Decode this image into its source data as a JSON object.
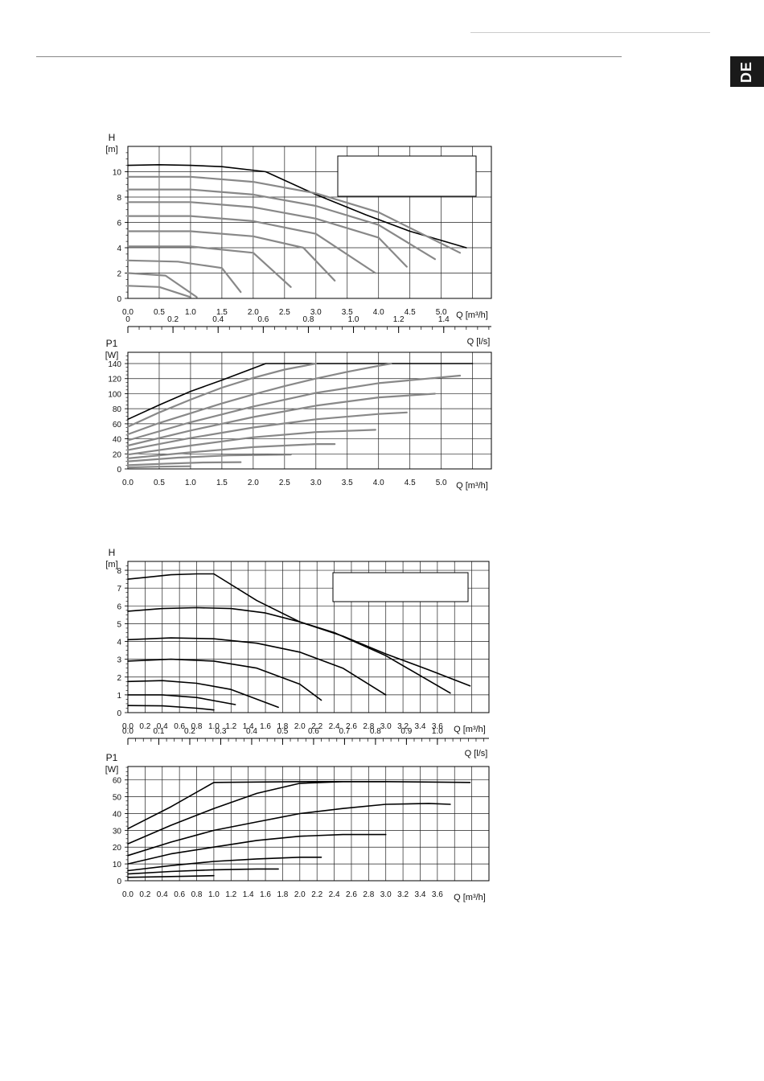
{
  "header": {
    "language_tab": "DE"
  },
  "chart_data": [
    {
      "id": "pump1_head",
      "type": "line",
      "title": "",
      "ylabel": "H",
      "yunit": "[m]",
      "xlabel": "Q [m³/h]",
      "xlim": [
        0,
        5.8
      ],
      "ylim": [
        0,
        12
      ],
      "xticks": [
        0,
        0.5,
        1,
        1.5,
        2,
        2.5,
        3,
        3.5,
        4,
        4.5,
        5
      ],
      "xticklabels": [
        "0.0",
        "0.5",
        "1.0",
        "1.5",
        "2.0",
        "2.5",
        "3.0",
        "3.5",
        "4.0",
        "4.5",
        "5.0"
      ],
      "yticks": [
        0,
        2,
        4,
        6,
        8,
        10
      ],
      "yticklabels": [
        "0",
        "2",
        "4",
        "6",
        "8",
        "10"
      ],
      "legend_box": true,
      "secondary_axis": {
        "label": "Q [l/s]",
        "ticks": [
          0,
          0.2,
          0.4,
          0.6,
          0.8,
          1.0,
          1.2,
          1.4
        ],
        "ticklabels": [
          "0",
          "0.2",
          "0.4",
          "0.6",
          "0.8",
          "1.0",
          "1.2",
          "1.4"
        ]
      },
      "series": [
        {
          "color": "#000000",
          "x": [
            0,
            0.5,
            1.0,
            1.5,
            2.2,
            3.0,
            3.8,
            4.5,
            5.4
          ],
          "y": [
            10.5,
            10.55,
            10.5,
            10.4,
            10.0,
            8.2,
            6.6,
            5.3,
            4.0
          ]
        },
        {
          "color": "#888888",
          "x": [
            0,
            1.0,
            2.0,
            3.0,
            4.0,
            5.3
          ],
          "y": [
            9.6,
            9.6,
            9.2,
            8.3,
            6.8,
            3.6
          ]
        },
        {
          "color": "#888888",
          "x": [
            0,
            1.0,
            2.0,
            3.0,
            4.0,
            4.9
          ],
          "y": [
            8.6,
            8.6,
            8.2,
            7.3,
            5.8,
            3.1
          ]
        },
        {
          "color": "#888888",
          "x": [
            0,
            1.0,
            2.0,
            3.0,
            4.0,
            4.45
          ],
          "y": [
            7.6,
            7.6,
            7.2,
            6.3,
            4.8,
            2.5
          ]
        },
        {
          "color": "#888888",
          "x": [
            0,
            1.0,
            2.0,
            3.0,
            3.95
          ],
          "y": [
            6.5,
            6.5,
            6.1,
            5.1,
            2.0
          ]
        },
        {
          "color": "#888888",
          "x": [
            0,
            1.0,
            2.0,
            2.8,
            3.3
          ],
          "y": [
            5.3,
            5.3,
            4.9,
            4.0,
            1.4
          ]
        },
        {
          "color": "#888888",
          "x": [
            0,
            1.0,
            2.0,
            2.6
          ],
          "y": [
            4.1,
            4.1,
            3.6,
            0.9
          ]
        },
        {
          "color": "#888888",
          "x": [
            0,
            0.8,
            1.5,
            1.8
          ],
          "y": [
            3.0,
            2.9,
            2.4,
            0.5
          ]
        },
        {
          "color": "#888888",
          "x": [
            0,
            0.6,
            1.1
          ],
          "y": [
            2.0,
            1.8,
            0.1
          ]
        },
        {
          "color": "#888888",
          "x": [
            0,
            0.5,
            1.0
          ],
          "y": [
            1.0,
            0.9,
            0.1
          ]
        }
      ]
    },
    {
      "id": "pump1_power",
      "type": "line",
      "title": "",
      "ylabel": "P1",
      "yunit": "[W]",
      "xlabel": "Q [m³/h]",
      "xlim": [
        0,
        5.8
      ],
      "ylim": [
        0,
        155
      ],
      "xticks": [
        0,
        0.5,
        1,
        1.5,
        2,
        2.5,
        3,
        3.5,
        4,
        4.5,
        5
      ],
      "xticklabels": [
        "0.0",
        "0.5",
        "1.0",
        "1.5",
        "2.0",
        "2.5",
        "3.0",
        "3.5",
        "4.0",
        "4.5",
        "5.0"
      ],
      "yticks": [
        0,
        20,
        40,
        60,
        80,
        100,
        120,
        140
      ],
      "yticklabels": [
        "0",
        "20",
        "40",
        "60",
        "80",
        "100",
        "120",
        "140"
      ],
      "series": [
        {
          "color": "#000000",
          "x": [
            0,
            0.5,
            1.0,
            1.5,
            2.2,
            3.0,
            4.0,
            5.5
          ],
          "y": [
            66,
            85,
            103,
            118,
            140,
            140,
            140,
            140
          ]
        },
        {
          "color": "#888888",
          "x": [
            0,
            0.5,
            1.0,
            1.5,
            2.0,
            2.5,
            3.0
          ],
          "y": [
            56,
            75,
            92,
            108,
            121,
            132,
            140
          ]
        },
        {
          "color": "#888888",
          "x": [
            0,
            0.5,
            1.0,
            1.5,
            2.0,
            2.5,
            3.0,
            3.5,
            4.0,
            4.2
          ],
          "y": [
            46,
            61,
            74,
            87,
            99,
            110,
            120,
            129,
            137,
            140
          ]
        },
        {
          "color": "#888888",
          "x": [
            0,
            1.0,
            2.0,
            3.0,
            4.0,
            5.3
          ],
          "y": [
            38,
            62,
            83,
            101,
            114,
            124
          ]
        },
        {
          "color": "#888888",
          "x": [
            0,
            1.0,
            2.0,
            3.0,
            4.0,
            4.9
          ],
          "y": [
            31,
            51,
            69,
            84,
            95,
            100
          ]
        },
        {
          "color": "#888888",
          "x": [
            0,
            1.0,
            2.0,
            3.0,
            4.0,
            4.45
          ],
          "y": [
            25,
            41,
            55,
            66,
            73,
            75
          ]
        },
        {
          "color": "#888888",
          "x": [
            0,
            1.0,
            2.0,
            3.0,
            3.95
          ],
          "y": [
            19,
            31,
            42,
            49,
            52
          ]
        },
        {
          "color": "#888888",
          "x": [
            0,
            1.0,
            2.0,
            3.0,
            3.3
          ],
          "y": [
            14,
            22,
            29,
            33,
            33
          ]
        },
        {
          "color": "#888888",
          "x": [
            0,
            0.8,
            1.6,
            2.6
          ],
          "y": [
            10,
            15,
            18,
            19
          ]
        },
        {
          "color": "#888888",
          "x": [
            0,
            0.6,
            1.2,
            1.8
          ],
          "y": [
            5,
            7,
            8.5,
            9
          ]
        },
        {
          "color": "#888888",
          "x": [
            0,
            0.5,
            1.0
          ],
          "y": [
            2,
            3,
            3.5
          ]
        }
      ]
    },
    {
      "id": "pump2_head",
      "type": "line",
      "title": "",
      "ylabel": "H",
      "yunit": "[m]",
      "xlabel": "Q [m³/h]",
      "xlim": [
        0,
        4.2
      ],
      "ylim": [
        0,
        8.5
      ],
      "xticks": [
        0,
        0.2,
        0.4,
        0.6,
        0.8,
        1.0,
        1.2,
        1.4,
        1.6,
        1.8,
        2.0,
        2.2,
        2.4,
        2.6,
        2.8,
        3.0,
        3.2,
        3.4,
        3.6
      ],
      "xticklabels": [
        "0.0",
        "0.2",
        "0.4",
        "0.6",
        "0.8",
        "1.0",
        "1.2",
        "1.4",
        "1.6",
        "1.8",
        "2.0",
        "2.2",
        "2.4",
        "2.6",
        "2.8",
        "3.0",
        "3.2",
        "3.4",
        "3.6"
      ],
      "yticks": [
        0,
        1,
        2,
        3,
        4,
        5,
        6,
        7,
        8
      ],
      "yticklabels": [
        "0",
        "1",
        "2",
        "3",
        "4",
        "5",
        "6",
        "7",
        "8"
      ],
      "legend_box": true,
      "secondary_axis": {
        "label": "Q [l/s]",
        "ticks": [
          0,
          0.1,
          0.2,
          0.3,
          0.4,
          0.5,
          0.6,
          0.7,
          0.8,
          0.9,
          1.0
        ],
        "ticklabels": [
          "0.0",
          "0.1",
          "0.2",
          "0.3",
          "0.4",
          "0.5",
          "0.6",
          "0.7",
          "0.8",
          "0.9",
          "1.0"
        ]
      },
      "series": [
        {
          "color": "#000000",
          "x": [
            0,
            0.2,
            0.5,
            0.8,
            1.0,
            1.5,
            2.0,
            2.5,
            3.0,
            3.5,
            3.98
          ],
          "y": [
            7.5,
            7.6,
            7.75,
            7.8,
            7.8,
            6.3,
            5.1,
            4.3,
            3.3,
            2.4,
            1.5
          ]
        },
        {
          "color": "#000000",
          "x": [
            0,
            0.4,
            0.8,
            1.2,
            1.6,
            2.0,
            2.4,
            3.0,
            3.75
          ],
          "y": [
            5.7,
            5.85,
            5.9,
            5.85,
            5.6,
            5.1,
            4.5,
            3.2,
            1.1
          ]
        },
        {
          "color": "#000000",
          "x": [
            0,
            0.5,
            1.0,
            1.5,
            2.0,
            2.5,
            3.0
          ],
          "y": [
            4.1,
            4.2,
            4.15,
            3.9,
            3.4,
            2.5,
            1.0
          ]
        },
        {
          "color": "#000000",
          "x": [
            0,
            0.5,
            1.0,
            1.5,
            2.0,
            2.25
          ],
          "y": [
            2.9,
            3.0,
            2.9,
            2.5,
            1.6,
            0.7
          ]
        },
        {
          "color": "#000000",
          "x": [
            0,
            0.4,
            0.8,
            1.2,
            1.75
          ],
          "y": [
            1.75,
            1.8,
            1.65,
            1.3,
            0.3
          ]
        },
        {
          "color": "#000000",
          "x": [
            0,
            0.4,
            0.8,
            1.25
          ],
          "y": [
            1.0,
            1.0,
            0.85,
            0.45
          ]
        },
        {
          "color": "#000000",
          "x": [
            0,
            0.4,
            0.8,
            1.0
          ],
          "y": [
            0.4,
            0.38,
            0.25,
            0.15
          ]
        }
      ]
    },
    {
      "id": "pump2_power",
      "type": "line",
      "title": "",
      "ylabel": "P1",
      "yunit": "[W]",
      "xlabel": "Q [m³/h]",
      "xlim": [
        0,
        4.2
      ],
      "ylim": [
        0,
        68
      ],
      "xticks": [
        0,
        0.2,
        0.4,
        0.6,
        0.8,
        1.0,
        1.2,
        1.4,
        1.6,
        1.8,
        2.0,
        2.2,
        2.4,
        2.6,
        2.8,
        3.0,
        3.2,
        3.4,
        3.6
      ],
      "xticklabels": [
        "0.0",
        "0.2",
        "0.4",
        "0.6",
        "0.8",
        "1.0",
        "1.2",
        "1.4",
        "1.6",
        "1.8",
        "2.0",
        "2.2",
        "2.4",
        "2.6",
        "2.8",
        "3.0",
        "3.2",
        "3.4",
        "3.6"
      ],
      "yticks": [
        0,
        10,
        20,
        30,
        40,
        50,
        60
      ],
      "yticklabels": [
        "0",
        "10",
        "20",
        "30",
        "40",
        "50",
        "60"
      ],
      "series": [
        {
          "color": "#000000",
          "x": [
            0,
            0.5,
            1.0,
            2.0,
            3.0,
            3.98
          ],
          "y": [
            31,
            44,
            58.5,
            59,
            59,
            58.5
          ]
        },
        {
          "color": "#000000",
          "x": [
            0,
            0.5,
            1.0,
            1.5,
            2.0,
            2.5,
            3.0
          ],
          "y": [
            22,
            33,
            43,
            52,
            58,
            59,
            59
          ]
        },
        {
          "color": "#000000",
          "x": [
            0,
            0.5,
            1.0,
            1.5,
            2.0,
            2.5,
            3.0,
            3.5,
            3.75
          ],
          "y": [
            15,
            23,
            30,
            35,
            40,
            43,
            45.5,
            46,
            45.5
          ]
        },
        {
          "color": "#000000",
          "x": [
            0,
            0.5,
            1.0,
            1.5,
            2.0,
            2.5,
            3.0
          ],
          "y": [
            10,
            16,
            20,
            24,
            26.5,
            27.5,
            27.5
          ]
        },
        {
          "color": "#000000",
          "x": [
            0,
            0.5,
            1.0,
            1.5,
            2.0,
            2.25
          ],
          "y": [
            6,
            9,
            11.5,
            13,
            14,
            14
          ]
        },
        {
          "color": "#000000",
          "x": [
            0,
            0.5,
            1.0,
            1.5,
            1.75
          ],
          "y": [
            4,
            5.5,
            6.5,
            7,
            7
          ]
        },
        {
          "color": "#000000",
          "x": [
            0,
            0.5,
            1.0
          ],
          "y": [
            2,
            2.5,
            3
          ]
        }
      ]
    }
  ]
}
